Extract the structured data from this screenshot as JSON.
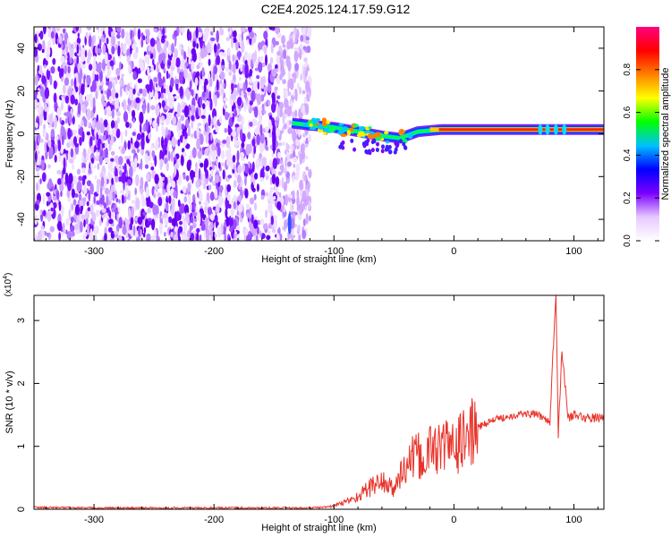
{
  "title": "C2E4.2025.124.17.59.G12",
  "chart_data": [
    {
      "type": "heatmap",
      "xlabel": "Height of straight line (km)",
      "ylabel": "Frequency (Hz)",
      "xlim": [
        -350,
        125
      ],
      "ylim": [
        -50,
        50
      ],
      "x_ticks": [
        -300,
        -200,
        -100,
        0,
        100
      ],
      "y_ticks": [
        -40,
        -20,
        0,
        20,
        40
      ],
      "colorbar": {
        "label": "Normalized spectral amplitude",
        "range": [
          0.0,
          1.0
        ],
        "ticks": [
          0.0,
          0.2,
          0.4,
          0.6,
          0.8
        ],
        "colors": [
          "#ffffff",
          "#e6c8ff",
          "#7a00ff",
          "#0000ff",
          "#00c0ff",
          "#00ff00",
          "#ffff00",
          "#ff8000",
          "#ff0000",
          "#ff0080"
        ]
      },
      "noise_region_x": [
        -350,
        -120
      ],
      "signal_track": {
        "x": [
          -135,
          -120,
          -100,
          -80,
          -60,
          -45,
          -30,
          -10,
          0,
          20,
          40,
          60,
          80,
          100,
          125
        ],
        "freq": [
          5,
          4,
          3,
          1,
          -1,
          -2,
          1,
          2,
          2,
          2,
          2,
          2,
          2,
          2,
          2
        ]
      }
    },
    {
      "type": "line",
      "xlabel": "Height of straight line (km)",
      "ylabel": "SNR (10 * v/v)",
      "y_multiplier": "(x10",
      "y_multiplier_exp": "4",
      "xlim": [
        -350,
        125
      ],
      "ylim": [
        0,
        3.4
      ],
      "x_ticks": [
        -300,
        -200,
        -100,
        0,
        100
      ],
      "y_ticks": [
        0,
        1,
        2,
        3
      ],
      "line_color": "#e8332a",
      "series": [
        {
          "x": [
            -350,
            -300,
            -250,
            -200,
            -150,
            -120,
            -110,
            -100,
            -90,
            -80,
            -70,
            -60,
            -50,
            -45,
            -40,
            -35,
            -30,
            -25,
            -20,
            -15,
            -10,
            -5,
            0,
            10,
            20,
            30,
            40,
            50,
            60,
            70,
            75,
            80,
            83,
            85,
            87,
            90,
            95,
            100,
            110,
            120,
            125
          ],
          "values": [
            0.03,
            0.02,
            0.02,
            0.02,
            0.02,
            0.02,
            0.03,
            0.05,
            0.12,
            0.2,
            0.35,
            0.45,
            0.3,
            0.55,
            0.65,
            0.8,
            0.85,
            0.75,
            0.95,
            1.0,
            0.95,
            1.05,
            0.95,
            1.15,
            1.3,
            1.4,
            1.45,
            1.5,
            1.52,
            1.5,
            1.45,
            1.4,
            2.65,
            3.35,
            1.2,
            2.55,
            1.45,
            1.5,
            1.45,
            1.45,
            1.48
          ]
        }
      ]
    }
  ]
}
